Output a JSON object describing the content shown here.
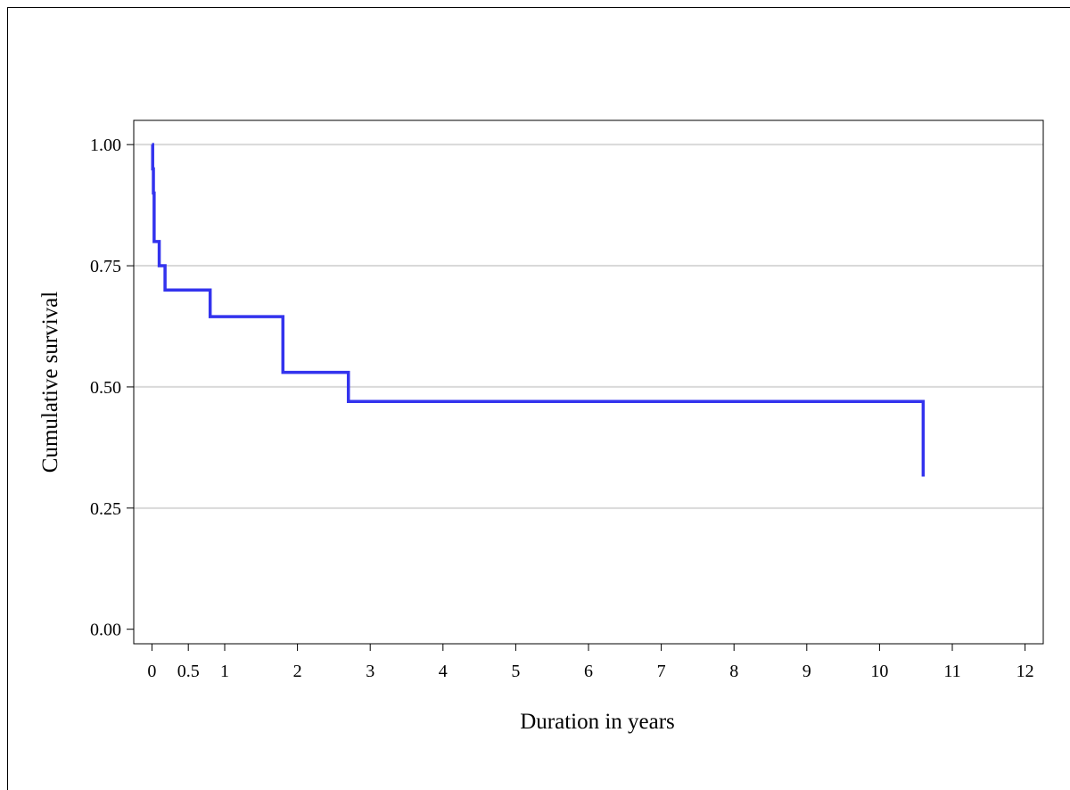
{
  "chart_data": {
    "type": "line",
    "step": true,
    "xlabel": "Duration in years",
    "ylabel": "Cumulative survival",
    "x_ticks": [
      0,
      0.5,
      1,
      2,
      3,
      4,
      5,
      6,
      7,
      8,
      9,
      10,
      11,
      12
    ],
    "x_tick_labels": [
      "0",
      "0.5",
      "1",
      "2",
      "3",
      "4",
      "5",
      "6",
      "7",
      "8",
      "9",
      "10",
      "11",
      "12"
    ],
    "y_ticks": [
      0,
      0.25,
      0.5,
      0.75,
      1.0
    ],
    "y_tick_labels": [
      "0.00",
      "0.25",
      "0.50",
      "0.75",
      "1.00"
    ],
    "xlim": [
      -0.25,
      12.25
    ],
    "ylim": [
      -0.03,
      1.05
    ],
    "grid": "horizontal",
    "series": [
      {
        "color": "#3333ee",
        "x": [
          0,
          0.01,
          0.02,
          0.03,
          0.1,
          0.18,
          0.8,
          1.8,
          2.7,
          10.6
        ],
        "y": [
          1.0,
          0.95,
          0.9,
          0.8,
          0.75,
          0.7,
          0.645,
          0.53,
          0.47,
          0.315
        ]
      }
    ]
  }
}
